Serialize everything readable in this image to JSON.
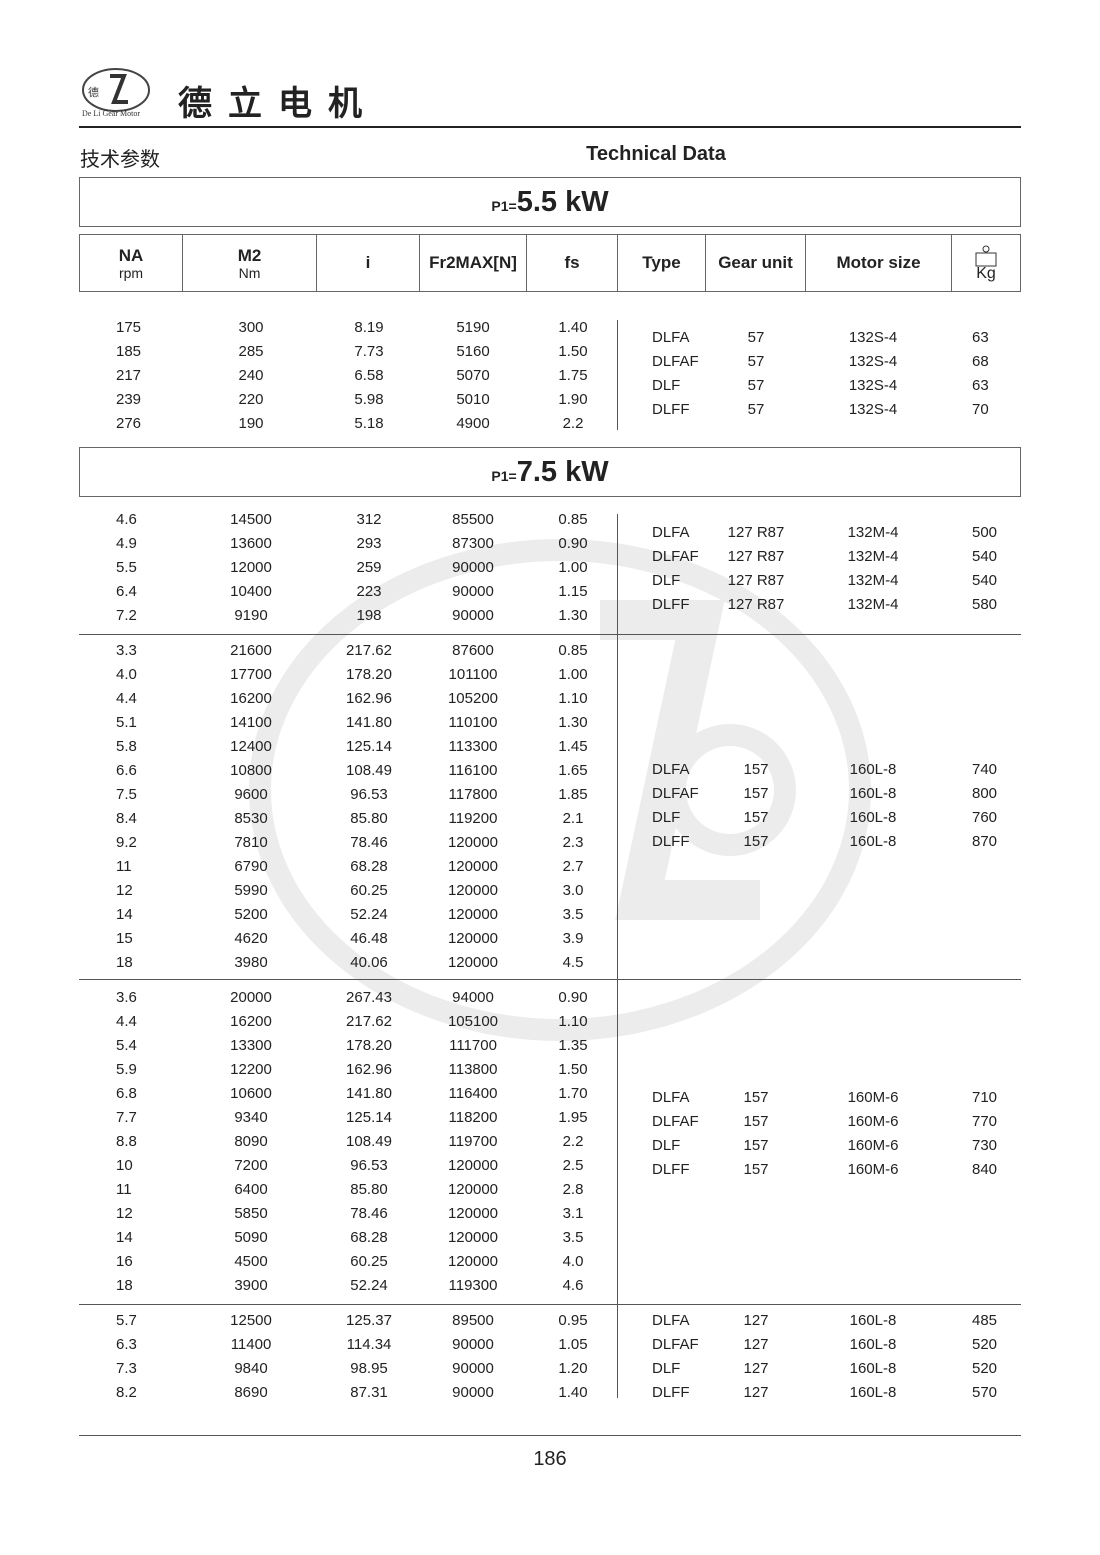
{
  "header": {
    "logo_text": "De Li Gear Motor",
    "logo_chars": "德立",
    "brand_title": "德立电机",
    "subtitle_cn": "技术参数",
    "subtitle_en": "Technical Data"
  },
  "watermark": {
    "text": "De Li Gear Motor",
    "chars": "德立"
  },
  "power_blocks": [
    {
      "label": "P1=",
      "value": "5.5 kW"
    },
    {
      "label": "P1=",
      "value": "7.5 kW"
    }
  ],
  "columns": {
    "na": "NA",
    "na_unit": "rpm",
    "m2": "M2",
    "m2_unit": "Nm",
    "i": "i",
    "fr": "Fr2MAX[N]",
    "fs": "fs",
    "type": "Type",
    "gear_unit": "Gear unit",
    "motor_size": "Motor size",
    "kg": "Kg",
    "weight_icon": "weight-icon"
  },
  "sections": [
    {
      "rows": [
        [
          "175",
          "300",
          "8.19",
          "5190",
          "1.40"
        ],
        [
          "185",
          "285",
          "7.73",
          "5160",
          "1.50"
        ],
        [
          "217",
          "240",
          "6.58",
          "5070",
          "1.75"
        ],
        [
          "239",
          "220",
          "5.98",
          "5010",
          "1.90"
        ],
        [
          "276",
          "190",
          "5.18",
          "4900",
          "2.2"
        ]
      ],
      "motors": [
        [
          "DLFA",
          "57",
          "132S-4",
          "63"
        ],
        [
          "DLFAF",
          "57",
          "132S-4",
          "68"
        ],
        [
          "DLF",
          "57",
          "132S-4",
          "63"
        ],
        [
          "DLFF",
          "57",
          "132S-4",
          "70"
        ]
      ]
    },
    {
      "rows": [
        [
          "4.6",
          "14500",
          "312",
          "85500",
          "0.85"
        ],
        [
          "4.9",
          "13600",
          "293",
          "87300",
          "0.90"
        ],
        [
          "5.5",
          "12000",
          "259",
          "90000",
          "1.00"
        ],
        [
          "6.4",
          "10400",
          "223",
          "90000",
          "1.15"
        ],
        [
          "7.2",
          "9190",
          "198",
          "90000",
          "1.30"
        ]
      ],
      "motors": [
        [
          "DLFA",
          "127 R87",
          "132M-4",
          "500"
        ],
        [
          "DLFAF",
          "127 R87",
          "132M-4",
          "540"
        ],
        [
          "DLF",
          "127 R87",
          "132M-4",
          "540"
        ],
        [
          "DLFF",
          "127 R87",
          "132M-4",
          "580"
        ]
      ]
    },
    {
      "rows": [
        [
          "3.3",
          "21600",
          "217.62",
          "87600",
          "0.85"
        ],
        [
          "4.0",
          "17700",
          "178.20",
          "101100",
          "1.00"
        ],
        [
          "4.4",
          "16200",
          "162.96",
          "105200",
          "1.10"
        ],
        [
          "5.1",
          "14100",
          "141.80",
          "110100",
          "1.30"
        ],
        [
          "5.8",
          "12400",
          "125.14",
          "113300",
          "1.45"
        ],
        [
          "6.6",
          "10800",
          "108.49",
          "116100",
          "1.65"
        ],
        [
          "7.5",
          "9600",
          "96.53",
          "117800",
          "1.85"
        ],
        [
          "8.4",
          "8530",
          "85.80",
          "119200",
          "2.1"
        ],
        [
          "9.2",
          "7810",
          "78.46",
          "120000",
          "2.3"
        ],
        [
          "11",
          "6790",
          "68.28",
          "120000",
          "2.7"
        ],
        [
          "12",
          "5990",
          "60.25",
          "120000",
          "3.0"
        ],
        [
          "14",
          "5200",
          "52.24",
          "120000",
          "3.5"
        ],
        [
          "15",
          "4620",
          "46.48",
          "120000",
          "3.9"
        ],
        [
          "18",
          "3980",
          "40.06",
          "120000",
          "4.5"
        ]
      ],
      "motors": [
        [
          "DLFA",
          "157",
          "160L-8",
          "740"
        ],
        [
          "DLFAF",
          "157",
          "160L-8",
          "800"
        ],
        [
          "DLF",
          "157",
          "160L-8",
          "760"
        ],
        [
          "DLFF",
          "157",
          "160L-8",
          "870"
        ]
      ]
    },
    {
      "rows": [
        [
          "3.6",
          "20000",
          "267.43",
          "94000",
          "0.90"
        ],
        [
          "4.4",
          "16200",
          "217.62",
          "105100",
          "1.10"
        ],
        [
          "5.4",
          "13300",
          "178.20",
          "111700",
          "1.35"
        ],
        [
          "5.9",
          "12200",
          "162.96",
          "113800",
          "1.50"
        ],
        [
          "6.8",
          "10600",
          "141.80",
          "116400",
          "1.70"
        ],
        [
          "7.7",
          "9340",
          "125.14",
          "118200",
          "1.95"
        ],
        [
          "8.8",
          "8090",
          "108.49",
          "119700",
          "2.2"
        ],
        [
          "10",
          "7200",
          "96.53",
          "120000",
          "2.5"
        ],
        [
          "11",
          "6400",
          "85.80",
          "120000",
          "2.8"
        ],
        [
          "12",
          "5850",
          "78.46",
          "120000",
          "3.1"
        ],
        [
          "14",
          "5090",
          "68.28",
          "120000",
          "3.5"
        ],
        [
          "16",
          "4500",
          "60.25",
          "120000",
          "4.0"
        ],
        [
          "18",
          "3900",
          "52.24",
          "119300",
          "4.6"
        ]
      ],
      "motors": [
        [
          "DLFA",
          "157",
          "160M-6",
          "710"
        ],
        [
          "DLFAF",
          "157",
          "160M-6",
          "770"
        ],
        [
          "DLF",
          "157",
          "160M-6",
          "730"
        ],
        [
          "DLFF",
          "157",
          "160M-6",
          "840"
        ]
      ]
    },
    {
      "rows": [
        [
          "5.7",
          "12500",
          "125.37",
          "89500",
          "0.95"
        ],
        [
          "6.3",
          "11400",
          "114.34",
          "90000",
          "1.05"
        ],
        [
          "7.3",
          "9840",
          "98.95",
          "90000",
          "1.20"
        ],
        [
          "8.2",
          "8690",
          "87.31",
          "90000",
          "1.40"
        ]
      ],
      "motors": [
        [
          "DLFA",
          "127",
          "160L-8",
          "485"
        ],
        [
          "DLFAF",
          "127",
          "160L-8",
          "520"
        ],
        [
          "DLF",
          "127",
          "160L-8",
          "520"
        ],
        [
          "DLFF",
          "127",
          "160L-8",
          "570"
        ]
      ]
    }
  ],
  "footer": {
    "page_number": "186"
  }
}
